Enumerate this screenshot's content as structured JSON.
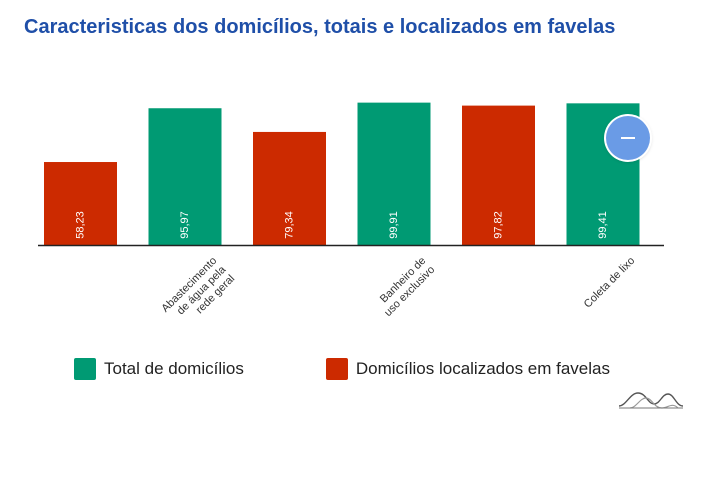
{
  "title": "Caracteristicas dos domicílios, totais e localizados em favelas",
  "chart_data": {
    "type": "bar",
    "title": "Caracteristicas dos domicílios, totais e localizados em favelas",
    "categories": [
      "",
      "Abastecimento de água pela rede geral",
      "",
      "Banheiro de uso exclusivo",
      "",
      "Coleta de lixo"
    ],
    "series": [
      {
        "name": "Total de domicílios",
        "color": "#009a73"
      },
      {
        "name": "Domicílios localizados em favelas",
        "color": "#cc2a00"
      }
    ],
    "bars": [
      {
        "series": "Domicílios localizados em favelas",
        "value": 58.23,
        "label": "58,23",
        "color": "#cc2a00"
      },
      {
        "series": "Total de domicílios",
        "value": 95.97,
        "label": "95,97",
        "color": "#009a73"
      },
      {
        "series": "Domicílios localizados em favelas",
        "value": 79.34,
        "label": "79,34",
        "color": "#cc2a00"
      },
      {
        "series": "Total de domicílios",
        "value": 99.91,
        "label": "99,91",
        "color": "#009a73"
      },
      {
        "series": "Domicílios localizados em favelas",
        "value": 97.82,
        "label": "97,82",
        "color": "#cc2a00"
      },
      {
        "series": "Total de domicílios",
        "value": 99.41,
        "label": "99,41",
        "color": "#009a73"
      }
    ],
    "category_labels": [
      {
        "bar": 1,
        "lines": [
          "Abastecimento",
          "de água pela",
          "rede geral"
        ]
      },
      {
        "bar": 3,
        "lines": [
          "Banheiro de",
          "uso exclusivo"
        ]
      },
      {
        "bar": 5,
        "lines": [
          "Coleta de lixo"
        ]
      }
    ],
    "ylim": [
      0,
      100
    ],
    "xlabel": "",
    "ylabel": "",
    "legend": "bottom"
  },
  "legend": {
    "items": [
      {
        "label": "Total de domicílios",
        "color": "#009a73"
      },
      {
        "label": "Domicílios localizados em favelas",
        "color": "#cc2a00"
      }
    ]
  },
  "fab_icon": "minus-icon",
  "brand_icon": "waves-logo-icon"
}
